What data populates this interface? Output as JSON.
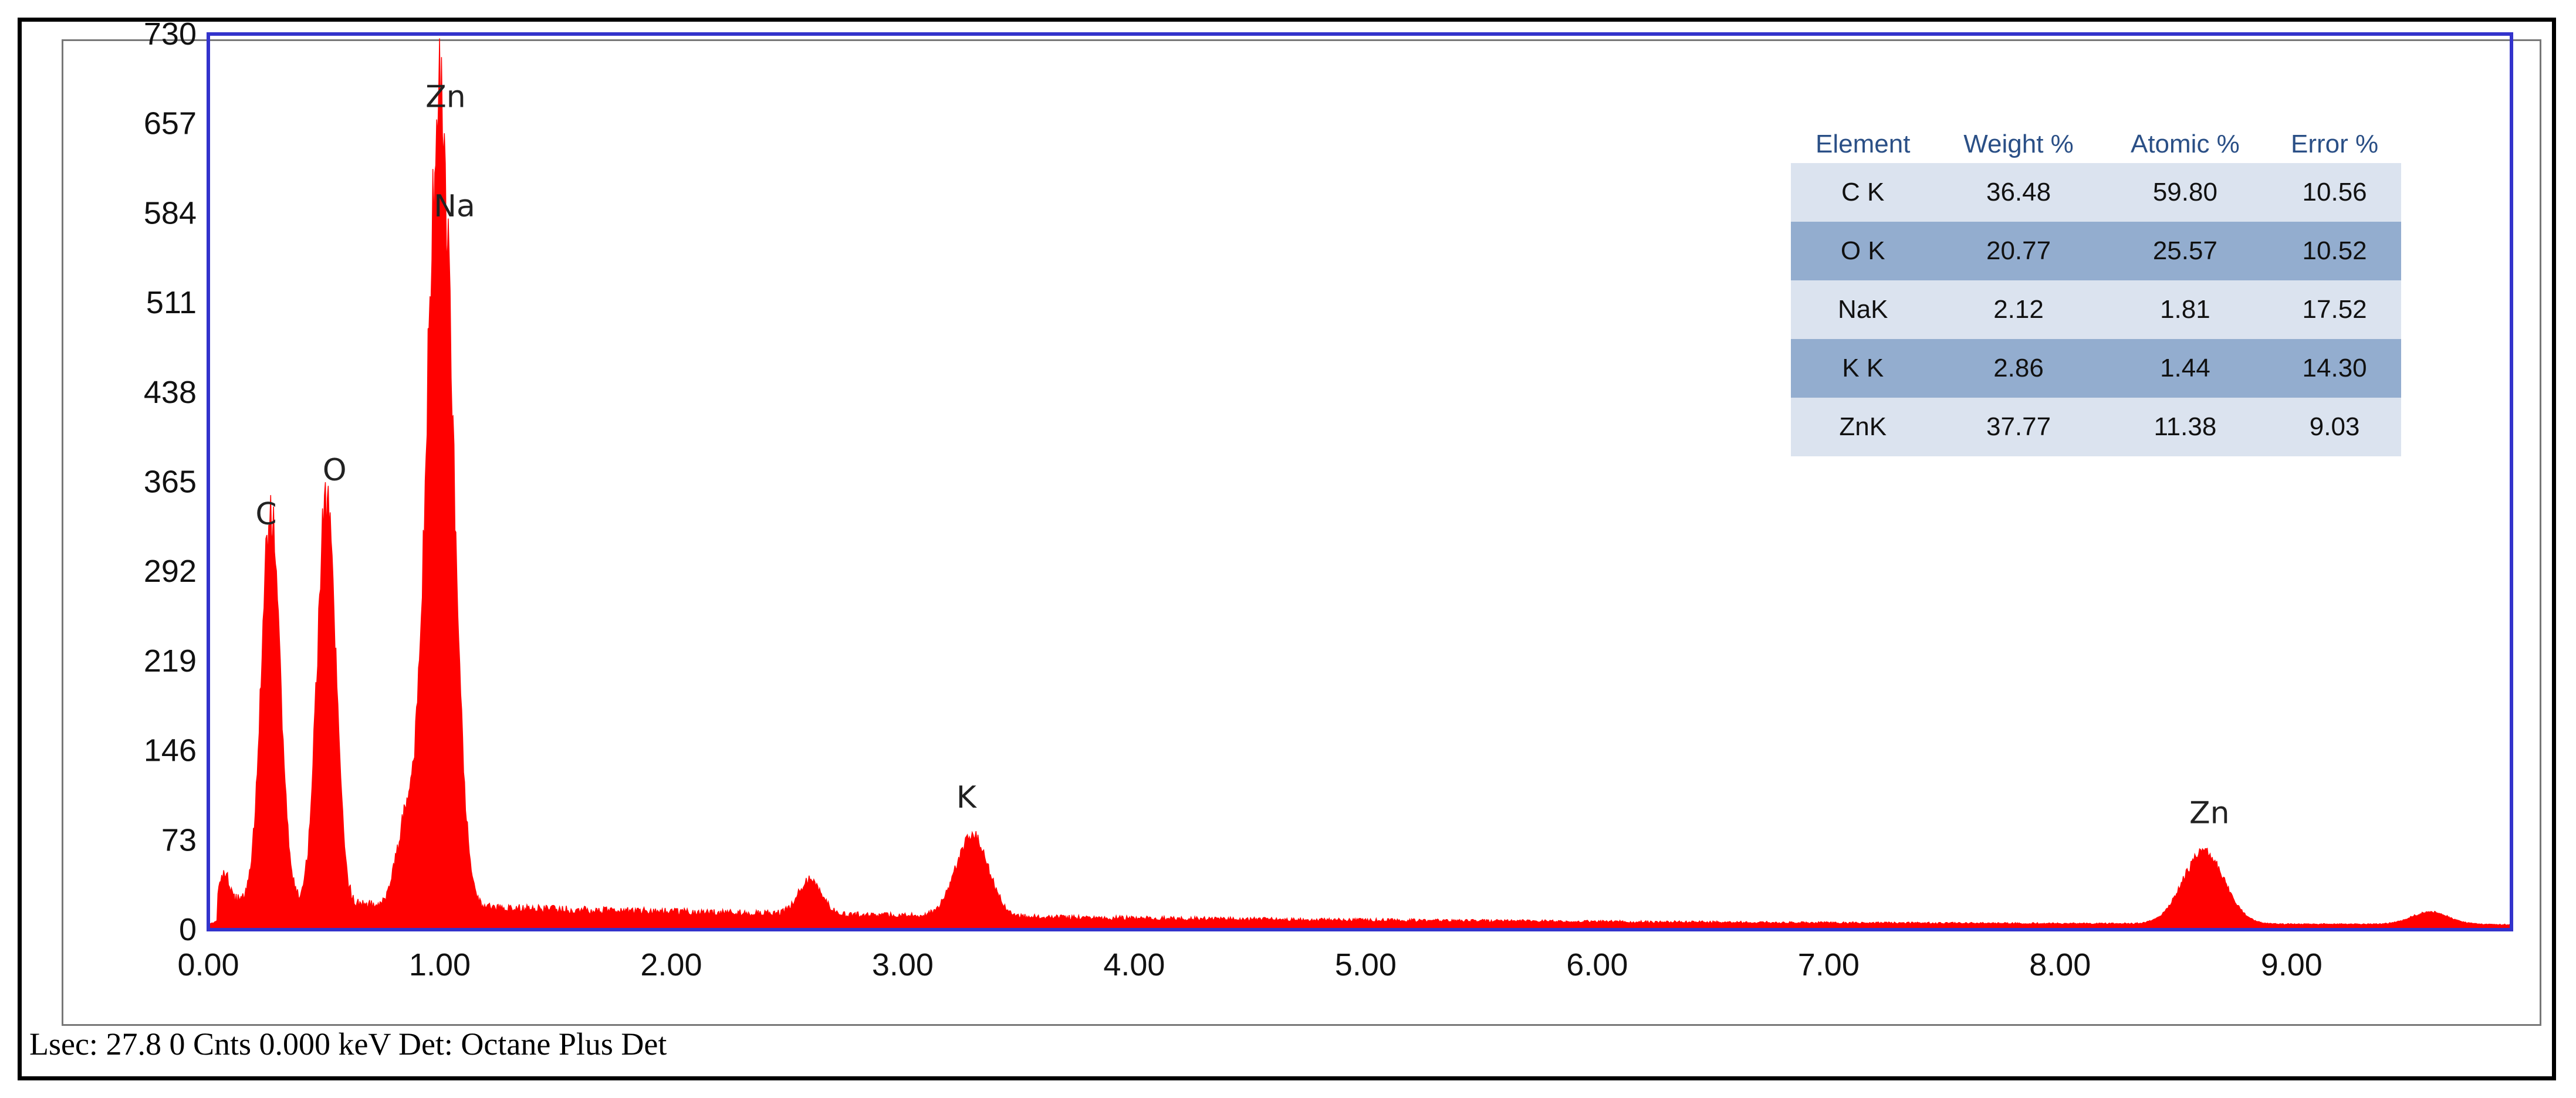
{
  "chart_data": {
    "type": "area",
    "title": "",
    "xlabel": "",
    "ylabel": "",
    "xlim": [
      0,
      9.95
    ],
    "ylim": [
      0,
      730
    ],
    "x_ticks": [
      "0.00",
      "1.00",
      "2.00",
      "3.00",
      "4.00",
      "5.00",
      "6.00",
      "7.00",
      "8.00",
      "9.00"
    ],
    "y_ticks": [
      "0",
      "73",
      "146",
      "219",
      "292",
      "365",
      "438",
      "511",
      "584",
      "657",
      "730"
    ],
    "series_color": "#ff0000",
    "frame_color": "#3333cc",
    "peaks": [
      {
        "label": "C",
        "x": 0.27,
        "y": 316,
        "width": 0.04
      },
      {
        "label": "O",
        "x": 0.51,
        "y": 328,
        "width": 0.04
      },
      {
        "label": "Zn",
        "x": 1.0,
        "y": 660,
        "width": 0.055
      },
      {
        "label": "Na",
        "x": 1.0,
        "y": 590,
        "width": 0.0
      },
      {
        "label": "K",
        "x": 3.3,
        "y": 66,
        "width": 0.07
      },
      {
        "label": "Zn",
        "x": 8.62,
        "y": 58,
        "width": 0.09
      }
    ],
    "minor_peaks": [
      {
        "x": 0.07,
        "y": 22,
        "width": 0.02
      },
      {
        "x": 0.85,
        "y": 62,
        "width": 0.04
      },
      {
        "x": 2.6,
        "y": 28,
        "width": 0.05
      },
      {
        "x": 9.6,
        "y": 10,
        "width": 0.08
      }
    ]
  },
  "quant_table": {
    "headers": [
      "Element",
      "Weight %",
      "Atomic %",
      "Error %"
    ],
    "rows": [
      [
        "C K",
        "36.48",
        "59.80",
        "10.56"
      ],
      [
        "O K",
        "20.77",
        "25.57",
        "10.52"
      ],
      [
        "NaK",
        "2.12",
        "1.81",
        "17.52"
      ],
      [
        "K K",
        "2.86",
        "1.44",
        "14.30"
      ],
      [
        "ZnK",
        "37.77",
        "11.38",
        "9.03"
      ]
    ]
  },
  "status": {
    "text": "Lsec: 27.8 0 Cnts 0.000 keV Det: Octane Plus Det"
  }
}
